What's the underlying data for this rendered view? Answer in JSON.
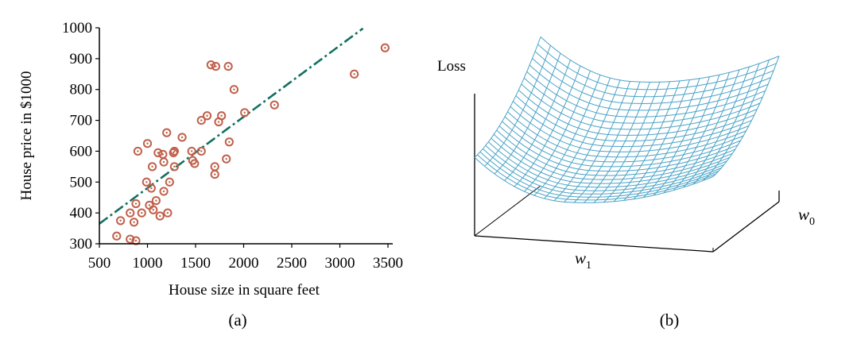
{
  "colors": {
    "points": "#c0604a",
    "fit_line": "#137060",
    "mesh": "#4aa3c7",
    "axes": "#000000"
  },
  "chart_data": [
    {
      "type": "scatter",
      "panel_label": "(a)",
      "xlabel": "House size in square feet",
      "ylabel": "House price in $1000",
      "xlim": [
        500,
        3500
      ],
      "ylim": [
        300,
        1000
      ],
      "xticks": [
        500,
        1000,
        1500,
        2000,
        2500,
        3000,
        3500
      ],
      "yticks": [
        300,
        400,
        500,
        600,
        700,
        800,
        900,
        1000
      ],
      "grid": false,
      "marker": "circle-dot",
      "points": [
        [
          680,
          325
        ],
        [
          720,
          375
        ],
        [
          820,
          315
        ],
        [
          820,
          400
        ],
        [
          860,
          370
        ],
        [
          880,
          310
        ],
        [
          880,
          430
        ],
        [
          900,
          600
        ],
        [
          940,
          400
        ],
        [
          990,
          500
        ],
        [
          1000,
          625
        ],
        [
          1020,
          425
        ],
        [
          1040,
          480
        ],
        [
          1050,
          550
        ],
        [
          1060,
          410
        ],
        [
          1090,
          440
        ],
        [
          1110,
          595
        ],
        [
          1130,
          390
        ],
        [
          1160,
          590
        ],
        [
          1170,
          565
        ],
        [
          1170,
          470
        ],
        [
          1200,
          660
        ],
        [
          1210,
          400
        ],
        [
          1230,
          500
        ],
        [
          1270,
          595
        ],
        [
          1280,
          550
        ],
        [
          1280,
          600
        ],
        [
          1360,
          645
        ],
        [
          1460,
          600
        ],
        [
          1470,
          570
        ],
        [
          1490,
          560
        ],
        [
          1560,
          700
        ],
        [
          1560,
          600
        ],
        [
          1620,
          715
        ],
        [
          1660,
          880
        ],
        [
          1700,
          550
        ],
        [
          1700,
          525
        ],
        [
          1710,
          875
        ],
        [
          1740,
          695
        ],
        [
          1770,
          715
        ],
        [
          1820,
          575
        ],
        [
          1840,
          875
        ],
        [
          1850,
          630
        ],
        [
          1900,
          800
        ],
        [
          2010,
          725
        ],
        [
          2320,
          750
        ],
        [
          3150,
          850
        ],
        [
          3470,
          935
        ]
      ],
      "fit_line": {
        "style": "dash-dot",
        "from": [
          500,
          365
        ],
        "to": [
          3240,
          998
        ]
      }
    },
    {
      "type": "surface",
      "panel_label": "(b)",
      "zlabel": "Loss",
      "xlabel": "w",
      "xlabel_sub": "1",
      "ylabel": "w",
      "ylabel_sub": "0",
      "surface": "convex quadratic bowl"
    }
  ]
}
